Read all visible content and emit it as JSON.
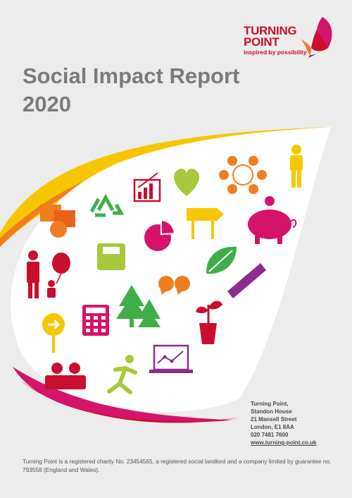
{
  "logo": {
    "line1": "TURNING",
    "line2": "POINT",
    "tagline": "inspired by possibility"
  },
  "title": {
    "line1": "Social Impact Report",
    "line2": "2020"
  },
  "address": {
    "lines": [
      "Turning Point,",
      "Standon House",
      "21 Mansell Street",
      "London, E1 8AA",
      "020 7481 7600"
    ],
    "url": "www.turning-point.co.uk"
  },
  "footer": {
    "text": "Turning Point is a registered charity No. 23454565, a registered social landlord and a company limited by guarantee no. 793558 (England and Wales)."
  },
  "colors": {
    "brand_red": "#c8102e",
    "orange": "#f07d20",
    "yellow": "#f6c700",
    "green": "#3fae49",
    "lime": "#a6c83a",
    "magenta": "#d6136a",
    "purple": "#8c2c8c",
    "title_grey": "#7b7b7b"
  },
  "icons": [
    "recycle-icon",
    "bar-chart-icon",
    "heart-icon",
    "network-people-icon",
    "person-icon",
    "speech-bubbles-icon",
    "signpost-icon",
    "piggy-bank-icon",
    "scales-icon",
    "pie-chart-icon",
    "family-balloon-icon",
    "leaf-icon",
    "quote-icon",
    "ruler-icon",
    "trees-icon",
    "calculator-icon",
    "plant-pot-icon",
    "arrow-sign-icon",
    "laptop-icon",
    "couple-icon",
    "runner-icon"
  ]
}
